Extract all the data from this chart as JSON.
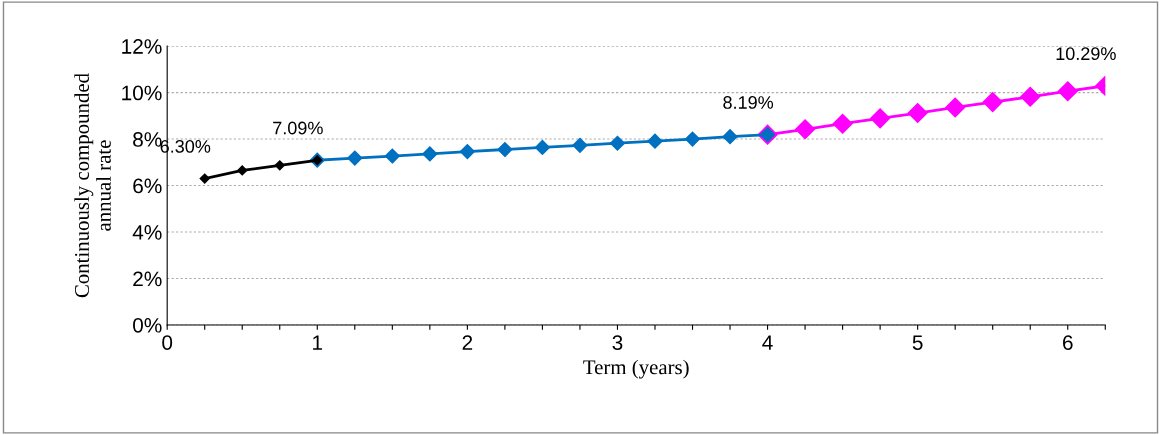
{
  "chart_data": {
    "type": "line",
    "xlabel": "Term (years)",
    "ylabel": "Continuously compounded\nannual rate",
    "series": [
      {
        "color": "#000000",
        "x": [
          0.25,
          0.5,
          0.75,
          1.0
        ],
        "values": [
          6.3,
          6.65,
          6.87,
          7.09
        ]
      },
      {
        "color": "#0070c0",
        "x": [
          1.0,
          1.25,
          1.5,
          1.75,
          2.0,
          2.25,
          2.5,
          2.75,
          3.0,
          3.25,
          3.5,
          3.75,
          4.0
        ],
        "values": [
          7.09,
          7.18,
          7.27,
          7.36,
          7.46,
          7.55,
          7.64,
          7.73,
          7.82,
          7.91,
          8.0,
          8.1,
          8.19
        ]
      },
      {
        "color": "#ff00ff",
        "x": [
          4.0,
          4.25,
          4.5,
          4.75,
          5.0,
          5.25,
          5.5,
          5.75,
          6.0,
          6.25
        ],
        "values": [
          8.19,
          8.42,
          8.66,
          8.89,
          9.12,
          9.36,
          9.59,
          9.82,
          10.06,
          10.29
        ]
      }
    ],
    "xlim": [
      0,
      6.25
    ],
    "xticks": [
      0,
      {
        "value": 0.25,
        "label": null
      },
      {
        "value": 0.5,
        "label": null
      },
      {
        "value": 0.75,
        "label": null
      },
      1,
      {
        "value": 1.25,
        "label": null
      },
      {
        "value": 1.5,
        "label": null
      },
      {
        "value": 1.75,
        "label": null
      },
      2,
      {
        "value": 2.25,
        "label": null
      },
      {
        "value": 2.5,
        "label": null
      },
      {
        "value": 2.75,
        "label": null
      },
      3,
      {
        "value": 3.25,
        "label": null
      },
      {
        "value": 3.5,
        "label": null
      },
      {
        "value": 3.75,
        "label": null
      },
      4,
      {
        "value": 4.25,
        "label": null
      },
      {
        "value": 4.5,
        "label": null
      },
      {
        "value": 4.75,
        "label": null
      },
      5,
      {
        "value": 5.25,
        "label": null
      },
      {
        "value": 5.5,
        "label": null
      },
      {
        "value": 5.75,
        "label": null
      },
      6,
      {
        "value": 6.25,
        "label": null
      }
    ],
    "ylim": [
      0,
      12
    ],
    "yticks": [
      {
        "value": 0,
        "label": "0%"
      },
      {
        "value": 2,
        "label": "2%"
      },
      {
        "value": 4,
        "label": "4%"
      },
      {
        "value": 6,
        "label": "6%"
      },
      {
        "value": 8,
        "label": "8%"
      },
      {
        "value": 10,
        "label": "10%"
      },
      {
        "value": 12,
        "label": "12%"
      }
    ],
    "grid": "y",
    "marker": "diamond",
    "line_style": "solid",
    "legend": false,
    "annotations": [
      {
        "text": "6.30%",
        "x": 0.25,
        "y": 6.3
      },
      {
        "text": "7.09%",
        "x": 1.0,
        "y": 7.09
      },
      {
        "text": "8.19%",
        "x": 4.0,
        "y": 8.19
      },
      {
        "text": "10.29%",
        "x": 6.25,
        "y": 10.29
      }
    ]
  }
}
